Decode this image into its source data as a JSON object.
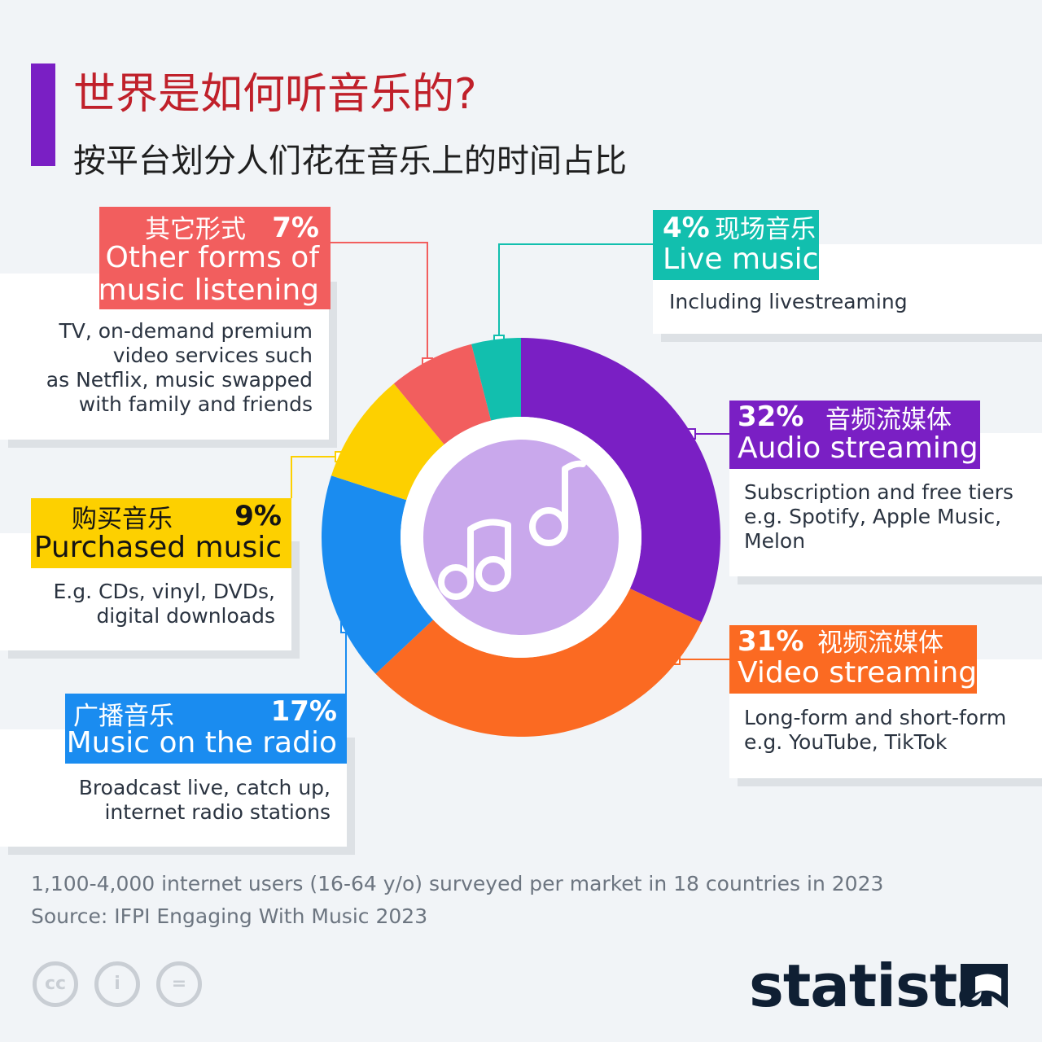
{
  "title": "世界是如何听音乐的?",
  "subtitle": "按平台划分人们花在音乐上的时间占比",
  "chart_data": {
    "type": "pie",
    "title": "世界是如何听音乐的?",
    "subtitle": "按平台划分人们花在音乐上的时间占比",
    "slices": [
      {
        "name_en": "Audio streaming",
        "name_cn": "音频流媒体",
        "value": 32,
        "pct_label": "32%",
        "color": "#7a1fc4",
        "desc": "Subscription and free tiers\ne.g. Spotify, Apple Music,\nMelon"
      },
      {
        "name_en": "Video streaming",
        "name_cn": "视频流媒体",
        "value": 31,
        "pct_label": "31%",
        "color": "#fb6a22",
        "desc": "Long-form and short-form\ne.g. YouTube, TikTok"
      },
      {
        "name_en": "Music on the radio",
        "name_cn": "广播音乐",
        "value": 17,
        "pct_label": "17%",
        "color": "#1a8cf0",
        "desc": "Broadcast live, catch up,\ninternet radio stations"
      },
      {
        "name_en": "Purchased music",
        "name_cn": "购买音乐",
        "value": 9,
        "pct_label": "9%",
        "color": "#fdd000",
        "desc": "E.g. CDs, vinyl, DVDs,\ndigital downloads"
      },
      {
        "name_en": "Other forms of music listening",
        "name_cn": "其它形式",
        "value": 7,
        "pct_label": "7%",
        "color": "#f25e5e",
        "desc": "TV, on-demand premium\nvideo services such\nas Netflix, music swapped\nwith family and friends"
      },
      {
        "name_en": "Live music",
        "name_cn": "现场音乐",
        "value": 4,
        "pct_label": "4%",
        "color": "#12bfae",
        "desc": "Including livestreaming"
      }
    ],
    "center_icon": "music-notes-icon",
    "center_color": "#c9a8ec"
  },
  "labels": {
    "other_en_1": "Other forms of",
    "other_en_2": "music listening"
  },
  "footnote": "1,100-4,000 internet users (16-64 y/o) surveyed per market in 18 countries in 2023",
  "source": "Source: IFPI Engaging With Music 2023",
  "license_icons": [
    "cc-icon",
    "attribution-icon",
    "no-derivatives-icon"
  ],
  "license_text": {
    "cc": "cc",
    "by": "i",
    "nd": "="
  },
  "brand": "statista"
}
